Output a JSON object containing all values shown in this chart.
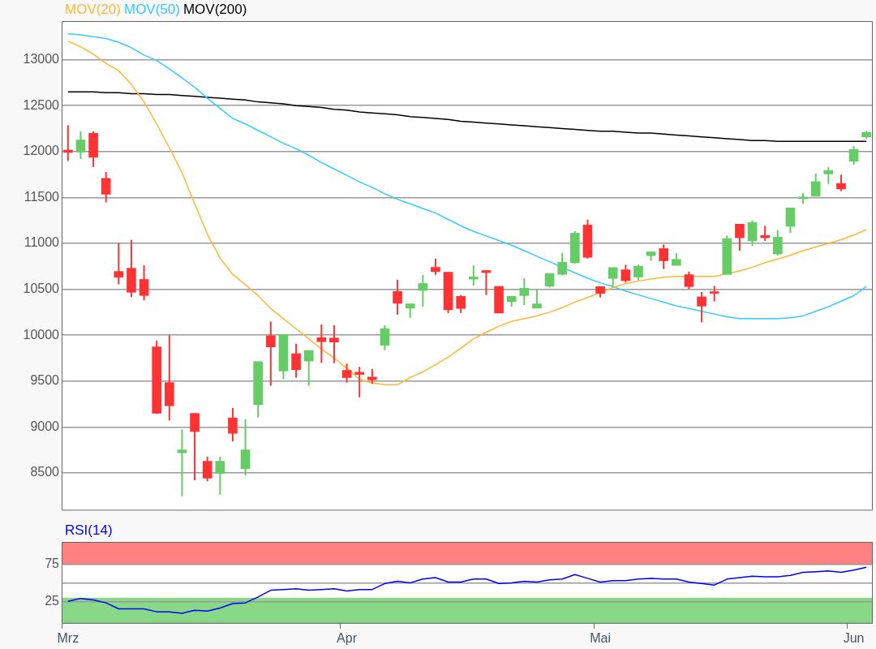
{
  "chart_data": [
    {
      "type": "candlestick",
      "legend": "top left",
      "grid": "y",
      "tick_labels": "y",
      "marker": "none",
      "ohlc": [
        [
          12015,
          12286,
          11898,
          11990
        ],
        [
          11994,
          12219,
          11918,
          12125
        ],
        [
          12198,
          12219,
          11831,
          11936
        ],
        [
          11708,
          11778,
          11446,
          11534
        ],
        [
          10694,
          11003,
          10554,
          10630
        ],
        [
          10729,
          11038,
          10414,
          10467
        ],
        [
          10607,
          10761,
          10379,
          10432
        ],
        [
          9872,
          9942,
          9143,
          9149
        ],
        [
          9484,
          10000,
          9071,
          9231
        ],
        [
          8720,
          8974,
          8246,
          8750
        ],
        [
          9149,
          9149,
          8420,
          8951
        ],
        [
          8627,
          8677,
          8409,
          8444
        ],
        [
          8496,
          8677,
          8263,
          8627
        ],
        [
          9100,
          9207,
          8843,
          8931
        ],
        [
          8546,
          9085,
          8473,
          8750
        ],
        [
          9245,
          9712,
          9105,
          9712
        ],
        [
          9994,
          10149,
          9449,
          9872
        ],
        [
          9610,
          10009,
          9522,
          10009
        ],
        [
          9799,
          9907,
          9537,
          9624
        ],
        [
          9718,
          9834,
          9449,
          9834
        ],
        [
          9974,
          10117,
          9697,
          9930
        ],
        [
          9969,
          10109,
          9696,
          9925
        ],
        [
          9617,
          9690,
          9485,
          9538
        ],
        [
          9597,
          9655,
          9324,
          9573
        ],
        [
          9544,
          9632,
          9471,
          9514
        ],
        [
          9890,
          10109,
          9837,
          10071
        ],
        [
          10476,
          10604,
          10224,
          10347
        ],
        [
          10294,
          10341,
          10188,
          10341
        ],
        [
          10487,
          10657,
          10311,
          10563
        ],
        [
          10739,
          10833,
          10657,
          10692
        ],
        [
          10686,
          10686,
          10241,
          10276
        ],
        [
          10423,
          10437,
          10241,
          10291
        ],
        [
          10610,
          10760,
          10540,
          10634
        ],
        [
          10704,
          10704,
          10437,
          10681
        ],
        [
          10531,
          10531,
          10241,
          10241
        ],
        [
          10364,
          10423,
          10311,
          10423
        ],
        [
          10431,
          10619,
          10329,
          10511
        ],
        [
          10294,
          10496,
          10294,
          10341
        ],
        [
          10534,
          10672,
          10519,
          10672
        ],
        [
          10663,
          10897,
          10651,
          10795
        ],
        [
          10789,
          11132,
          10780,
          11111
        ],
        [
          11199,
          11258,
          10833,
          10848
        ],
        [
          10529,
          10529,
          10411,
          10456
        ],
        [
          10618,
          10736,
          10529,
          10736
        ],
        [
          10712,
          10766,
          10574,
          10594
        ],
        [
          10633,
          10766,
          10597,
          10751
        ],
        [
          10866,
          10907,
          10810,
          10907
        ],
        [
          10943,
          10987,
          10721,
          10810
        ],
        [
          10760,
          10893,
          10760,
          10825
        ],
        [
          10659,
          10692,
          10500,
          10529
        ],
        [
          10417,
          10470,
          10140,
          10317
        ],
        [
          10470,
          10535,
          10367,
          10456
        ],
        [
          10662,
          11085,
          10662,
          11052
        ],
        [
          11209,
          11209,
          10919,
          11061
        ],
        [
          11026,
          11250,
          10972,
          11226
        ],
        [
          11085,
          11191,
          11026,
          11061
        ],
        [
          10884,
          11144,
          10869,
          11067
        ],
        [
          11185,
          11386,
          11114,
          11386
        ],
        [
          11486,
          11548,
          11430,
          11504
        ],
        [
          11513,
          11761,
          11513,
          11672
        ],
        [
          11755,
          11829,
          11646,
          11793
        ],
        [
          11652,
          11746,
          11569,
          11592
        ],
        [
          11894,
          12059,
          11858,
          12021
        ],
        [
          12159,
          12224,
          12139,
          12207
        ]
      ],
      "colors": [
        "#ff3333",
        "#66cc66",
        "#ff3333",
        "#ff3333",
        "#ff3333",
        "#ff3333",
        "#ff3333",
        "#ff3333",
        "#ff3333",
        "#66cc66",
        "#ff3333",
        "#ff3333",
        "#66cc66",
        "#ff3333",
        "#66cc66",
        "#66cc66",
        "#ff3333",
        "#66cc66",
        "#ff3333",
        "#66cc66",
        "#ff3333",
        "#ff3333",
        "#ff3333",
        "#ff3333",
        "#ff3333",
        "#66cc66",
        "#ff3333",
        "#66cc66",
        "#66cc66",
        "#ff3333",
        "#ff3333",
        "#ff3333",
        "#66cc66",
        "#ff3333",
        "#ff3333",
        "#66cc66",
        "#66cc66",
        "#66cc66",
        "#66cc66",
        "#66cc66",
        "#66cc66",
        "#ff3333",
        "#ff3333",
        "#66cc66",
        "#ff3333",
        "#66cc66",
        "#66cc66",
        "#ff3333",
        "#66cc66",
        "#ff3333",
        "#ff3333",
        "#ff3333",
        "#66cc66",
        "#ff3333",
        "#66cc66",
        "#ff3333",
        "#66cc66",
        "#66cc66",
        "#66cc66",
        "#66cc66",
        "#66cc66",
        "#ff3333",
        "#66cc66",
        "#66cc66"
      ],
      "series": [
        {
          "name": "MOV(20)",
          "type": "line",
          "color": "#ffb833",
          "values": [
            13200,
            13140,
            13060,
            12960,
            12880,
            12730,
            12540,
            12300,
            12040,
            11770,
            11430,
            11100,
            10840,
            10660,
            10550,
            10430,
            10290,
            10180,
            10070,
            9960,
            9850,
            9750,
            9640,
            9520,
            9480,
            9460,
            9460,
            9540,
            9600,
            9680,
            9760,
            9860,
            9960,
            10030,
            10100,
            10150,
            10180,
            10210,
            10250,
            10300,
            10360,
            10410,
            10460,
            10520,
            10560,
            10590,
            10610,
            10630,
            10640,
            null,
            10640,
            10640,
            null,
            10700,
            10740,
            10790,
            10830,
            10870,
            10920,
            10960,
            11000,
            11040,
            11090,
            11150
          ]
        },
        {
          "name": "MOV(50)",
          "type": "line",
          "color": "#33ccff",
          "values": [
            13280,
            13270,
            13250,
            13230,
            13190,
            13130,
            13050,
            12990,
            12900,
            12800,
            12700,
            12580,
            12470,
            12360,
            12300,
            12230,
            12160,
            12090,
            12030,
            11960,
            11880,
            11810,
            11740,
            11670,
            11610,
            11540,
            11480,
            11430,
            11380,
            11330,
            11260,
            11190,
            11130,
            11080,
            11030,
            10980,
            10920,
            10860,
            10800,
            null,
            10680,
            10620,
            10570,
            10530,
            10480,
            10440,
            10400,
            10360,
            10320,
            10290,
            10260,
            10230,
            10200,
            10180,
            10180,
            10180,
            10180,
            10190,
            10210,
            10260,
            10310,
            10370,
            10430,
            10530
          ]
        },
        {
          "name": "MOV(200)",
          "type": "line",
          "color": "#000000",
          "values": [
            12650,
            12650,
            12650,
            12640,
            12640,
            12630,
            12630,
            12620,
            12620,
            12610,
            12600,
            12590,
            12580,
            12570,
            12560,
            12540,
            12530,
            12520,
            12500,
            12490,
            12480,
            12460,
            12450,
            12430,
            12420,
            12410,
            12400,
            12380,
            12370,
            12360,
            12350,
            12330,
            12320,
            12310,
            12300,
            12290,
            12280,
            12270,
            12260,
            12250,
            12240,
            12230,
            12220,
            12220,
            12210,
            12200,
            12200,
            12190,
            12180,
            12170,
            12160,
            12150,
            12140,
            12130,
            12120,
            12120,
            12110,
            12110,
            12110,
            12110,
            12110,
            12110,
            12110,
            12110
          ]
        }
      ],
      "ylim": [
        8090,
        13420
      ],
      "yticks": [
        8500,
        9000,
        9500,
        10000,
        10500,
        11000,
        11500,
        12000,
        12500,
        13000
      ]
    },
    {
      "type": "line",
      "legend": "top left",
      "grid": "y",
      "marker": "none",
      "categories": [
        "Mrz",
        null,
        null,
        null,
        null,
        null,
        null,
        null,
        null,
        null,
        null,
        null,
        null,
        null,
        null,
        null,
        null,
        null,
        null,
        null,
        null,
        null,
        "Apr",
        null,
        null,
        null,
        null,
        null,
        null,
        null,
        null,
        null,
        null,
        null,
        null,
        null,
        null,
        null,
        null,
        null,
        null,
        null,
        "Mai",
        null,
        null,
        null,
        null,
        null,
        null,
        null,
        null,
        null,
        null,
        null,
        null,
        null,
        null,
        null,
        null,
        null,
        null,
        null,
        "Jun",
        null
      ],
      "series": [
        {
          "name": "RSI(14)",
          "color": "#0000ff",
          "values": [
            25,
            29,
            27,
            23,
            15,
            15,
            15,
            11,
            11,
            9,
            13,
            12,
            16,
            22,
            23,
            31,
            40,
            41,
            42,
            40,
            41,
            42,
            39,
            41,
            41,
            49,
            52,
            50,
            55,
            57,
            51,
            51,
            55,
            55,
            49,
            50,
            52,
            51,
            54,
            55,
            61,
            56,
            51,
            53,
            53,
            55,
            56,
            55,
            55,
            51,
            49,
            47,
            55,
            57,
            59,
            58,
            58,
            60,
            64,
            65,
            66,
            64,
            67,
            71
          ]
        }
      ],
      "ylim": [
        -5,
        105
      ],
      "yticks": [
        25,
        {
          "value": 50,
          "label": null
        },
        75
      ],
      "bands": [
        {
          "axis": "y",
          "from": 75,
          "to": 105,
          "color": "#ff8080"
        },
        {
          "axis": "y",
          "from": -5,
          "to": 30,
          "color": "#88d888"
        }
      ]
    }
  ]
}
